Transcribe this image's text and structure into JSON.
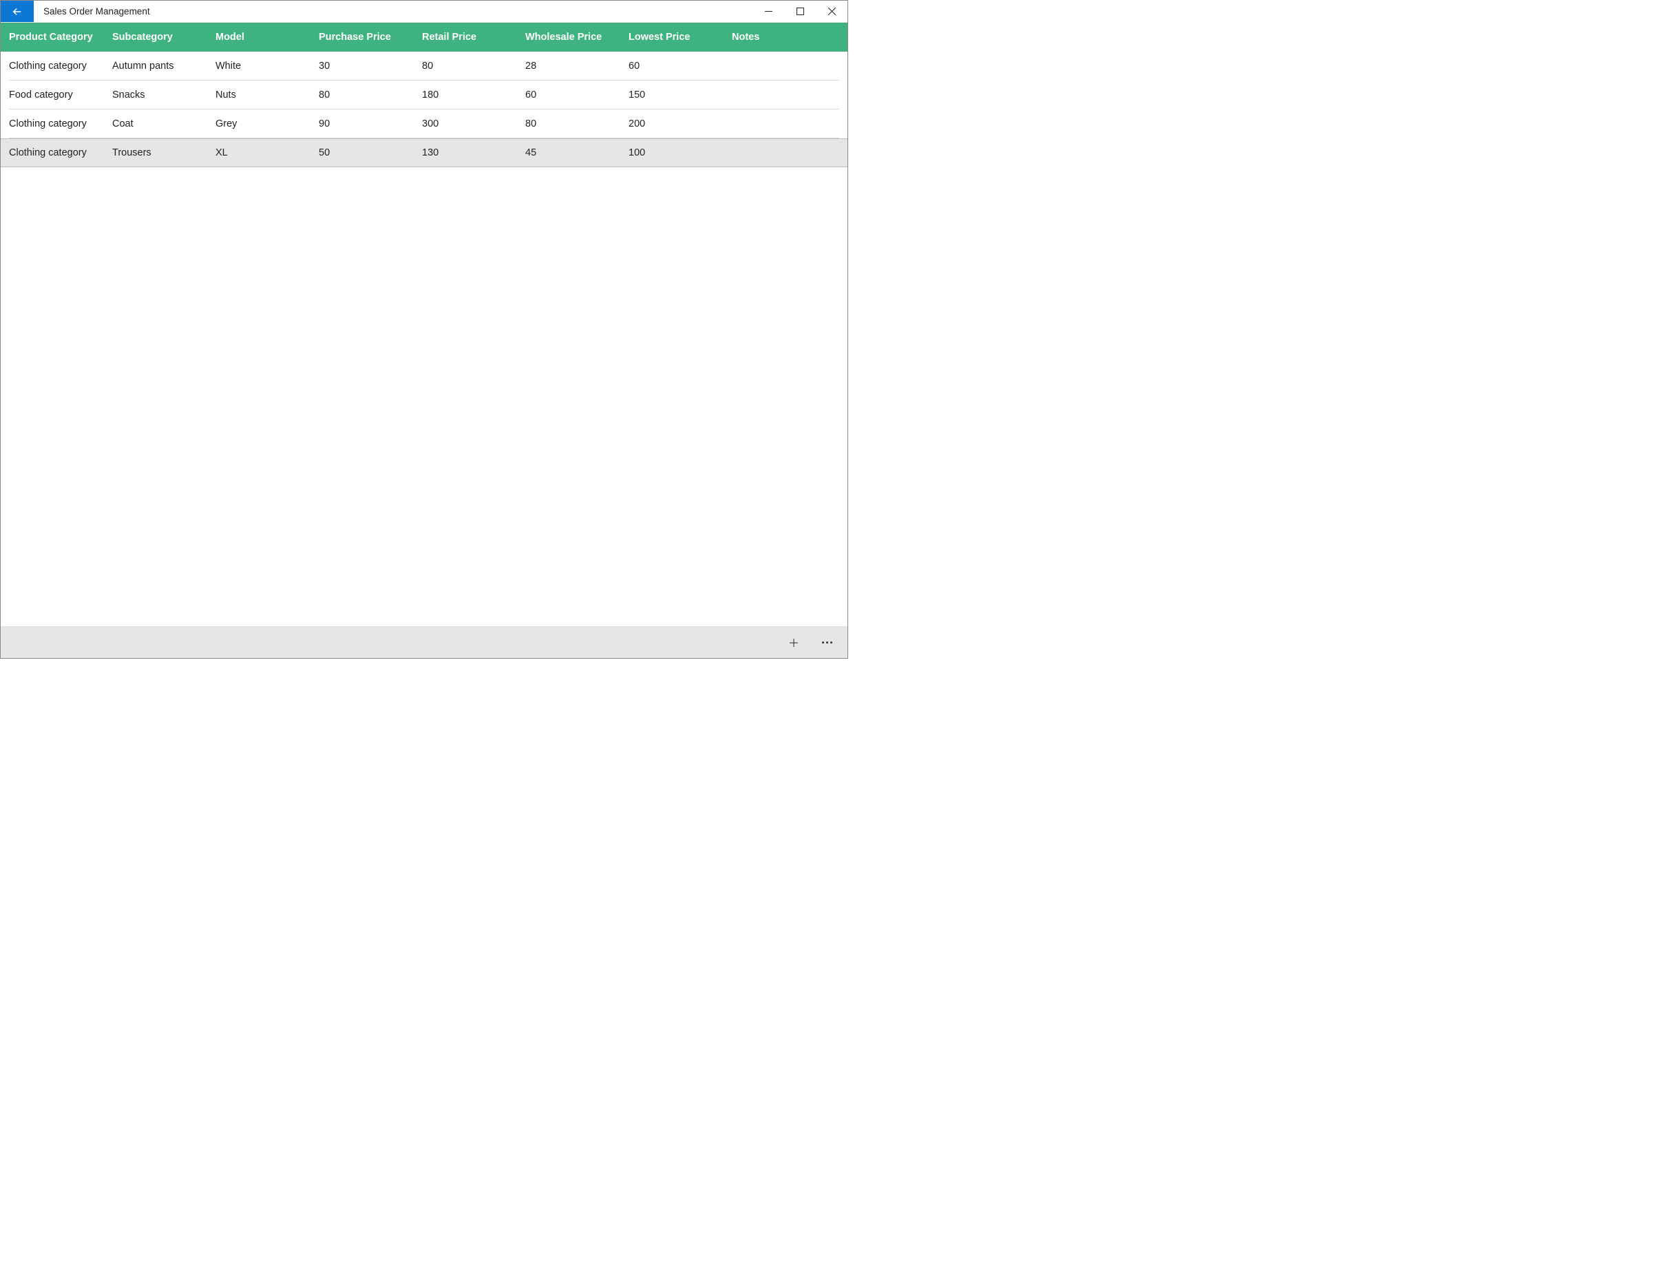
{
  "window": {
    "title": "Sales Order Management"
  },
  "colors": {
    "header_bg": "#3fb37f",
    "back_btn_bg": "#0a78d4",
    "bottombar_bg": "#e6e6e6",
    "selected_row_bg": "#e6e6e6",
    "row_border": "#d9d9d9"
  },
  "table": {
    "columns": [
      "Product Category",
      "Subcategory",
      "Model",
      "Purchase Price",
      "Retail Price",
      "Wholesale Price",
      "Lowest Price",
      "Notes"
    ],
    "rows": [
      {
        "category": "Clothing category",
        "subcategory": "Autumn pants",
        "model": "White",
        "purchase": "30",
        "retail": "80",
        "wholesale": "28",
        "lowest": "60",
        "notes": "",
        "selected": false
      },
      {
        "category": "Food category",
        "subcategory": "Snacks",
        "model": "Nuts",
        "purchase": "80",
        "retail": "180",
        "wholesale": "60",
        "lowest": "150",
        "notes": "",
        "selected": false
      },
      {
        "category": "Clothing category",
        "subcategory": "Coat",
        "model": "Grey",
        "purchase": "90",
        "retail": "300",
        "wholesale": "80",
        "lowest": "200",
        "notes": "",
        "selected": false
      },
      {
        "category": "Clothing category",
        "subcategory": "Trousers",
        "model": "XL",
        "purchase": "50",
        "retail": "130",
        "wholesale": "45",
        "lowest": "100",
        "notes": "",
        "selected": true
      }
    ]
  }
}
